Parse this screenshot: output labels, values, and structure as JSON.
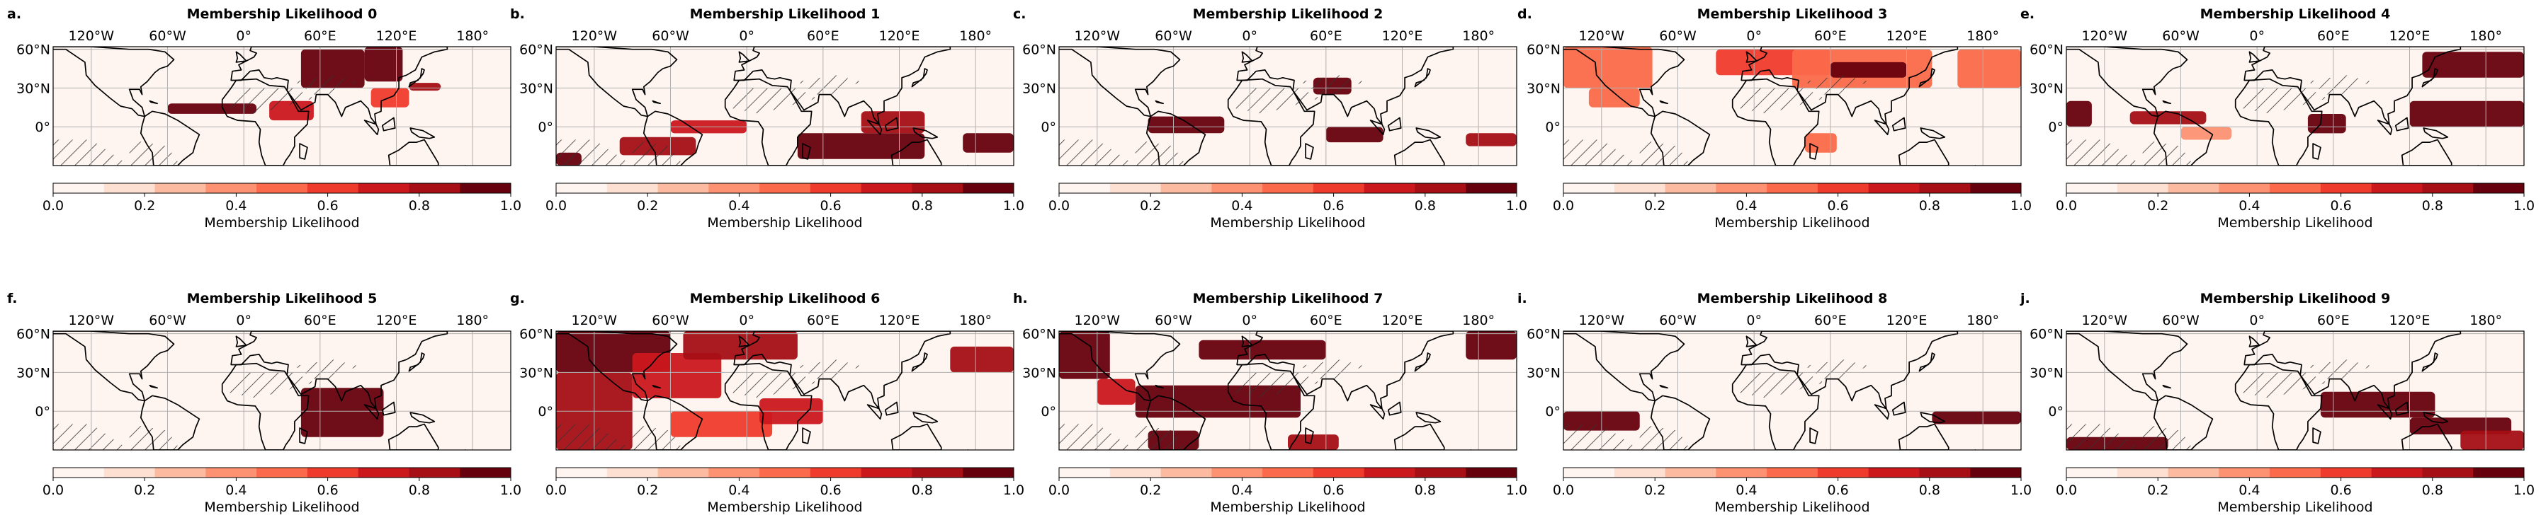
{
  "figure": {
    "colormap": [
      "#fff5f0",
      "#fee0d2",
      "#fcbba1",
      "#fc9272",
      "#fb6a4a",
      "#ef3b2c",
      "#cb181d",
      "#a50f15",
      "#67000d"
    ],
    "colors": {
      "map_bg": "#fff5f0",
      "coast": "#000000",
      "grid": "#b0b0b0",
      "hatch": "#333333"
    },
    "xtick_labels": [
      "120°W",
      "60°W",
      "0°",
      "60°E",
      "120°E",
      "180°"
    ],
    "xtick_values": [
      -120,
      -60,
      0,
      60,
      120,
      180
    ],
    "ytick_labels": [
      "60°N",
      "30°N",
      "0°"
    ],
    "ytick_values": [
      60,
      30,
      0
    ],
    "lon_range": [
      -150,
      210
    ],
    "lat_range": [
      -30,
      62
    ],
    "colorbar": {
      "label": "Membership Likelihood",
      "tick_labels": [
        "0.0",
        "0.2",
        "0.4",
        "0.6",
        "0.8",
        "1.0"
      ],
      "tick_values": [
        0,
        0.2,
        0.4,
        0.6,
        0.8,
        1.0
      ],
      "range": [
        0,
        1
      ]
    }
  },
  "chart_data": [
    {
      "type": "heatmap",
      "letter": "a.",
      "title": "Membership Likelihood 0",
      "xlabel": "",
      "ylabel": "",
      "xlim": [
        -150,
        210
      ],
      "ylim": [
        -30,
        62
      ],
      "regions": [
        {
          "lon": [
            45,
            95
          ],
          "lat": [
            30,
            60
          ],
          "value": 0.95
        },
        {
          "lon": [
            95,
            125
          ],
          "lat": [
            35,
            62
          ],
          "value": 0.95
        },
        {
          "lon": [
            -60,
            10
          ],
          "lat": [
            10,
            18
          ],
          "value": 0.9
        },
        {
          "lon": [
            20,
            55
          ],
          "lat": [
            5,
            20
          ],
          "value": 0.7
        },
        {
          "lon": [
            100,
            130
          ],
          "lat": [
            15,
            30
          ],
          "value": 0.6
        },
        {
          "lon": [
            130,
            155
          ],
          "lat": [
            28,
            34
          ],
          "value": 0.85
        }
      ]
    },
    {
      "type": "heatmap",
      "letter": "b.",
      "title": "Membership Likelihood 1",
      "xlabel": "",
      "ylabel": "",
      "xlim": [
        -150,
        210
      ],
      "ylim": [
        -30,
        62
      ],
      "regions": [
        {
          "lon": [
            -150,
            -130
          ],
          "lat": [
            -30,
            -20
          ],
          "value": 0.95
        },
        {
          "lon": [
            -100,
            -40
          ],
          "lat": [
            -22,
            -8
          ],
          "value": 0.8
        },
        {
          "lon": [
            -60,
            0
          ],
          "lat": [
            -5,
            5
          ],
          "value": 0.75
        },
        {
          "lon": [
            40,
            140
          ],
          "lat": [
            -25,
            -5
          ],
          "value": 0.95
        },
        {
          "lon": [
            90,
            140
          ],
          "lat": [
            -5,
            12
          ],
          "value": 0.85
        },
        {
          "lon": [
            170,
            210
          ],
          "lat": [
            -20,
            -5
          ],
          "value": 0.95
        }
      ]
    },
    {
      "type": "heatmap",
      "letter": "c.",
      "title": "Membership Likelihood 2",
      "xlabel": "",
      "ylabel": "",
      "xlim": [
        -150,
        210
      ],
      "ylim": [
        -30,
        62
      ],
      "regions": [
        {
          "lon": [
            -80,
            -20
          ],
          "lat": [
            -5,
            8
          ],
          "value": 0.95
        },
        {
          "lon": [
            50,
            80
          ],
          "lat": [
            25,
            38
          ],
          "value": 0.95
        },
        {
          "lon": [
            60,
            105
          ],
          "lat": [
            -12,
            0
          ],
          "value": 0.95
        },
        {
          "lon": [
            170,
            210
          ],
          "lat": [
            -15,
            -5
          ],
          "value": 0.8
        }
      ]
    },
    {
      "type": "heatmap",
      "letter": "d.",
      "title": "Membership Likelihood 3",
      "xlabel": "",
      "ylabel": "",
      "xlim": [
        -150,
        210
      ],
      "ylim": [
        -30,
        62
      ],
      "regions": [
        {
          "lon": [
            -150,
            -80
          ],
          "lat": [
            30,
            62
          ],
          "value": 0.55
        },
        {
          "lon": [
            -130,
            -90
          ],
          "lat": [
            15,
            30
          ],
          "value": 0.45
        },
        {
          "lon": [
            -30,
            60
          ],
          "lat": [
            40,
            60
          ],
          "value": 0.6
        },
        {
          "lon": [
            30,
            140
          ],
          "lat": [
            30,
            60
          ],
          "value": 0.55
        },
        {
          "lon": [
            60,
            120
          ],
          "lat": [
            38,
            50
          ],
          "value": 0.95
        },
        {
          "lon": [
            160,
            210
          ],
          "lat": [
            30,
            60
          ],
          "value": 0.5
        },
        {
          "lon": [
            40,
            65
          ],
          "lat": [
            -20,
            -5
          ],
          "value": 0.45
        }
      ]
    },
    {
      "type": "heatmap",
      "letter": "e.",
      "title": "Membership Likelihood 4",
      "xlabel": "",
      "ylabel": "",
      "xlim": [
        -150,
        210
      ],
      "ylim": [
        -30,
        62
      ],
      "regions": [
        {
          "lon": [
            -150,
            -130
          ],
          "lat": [
            0,
            20
          ],
          "value": 0.95
        },
        {
          "lon": [
            -100,
            -40
          ],
          "lat": [
            2,
            12
          ],
          "value": 0.85
        },
        {
          "lon": [
            -60,
            -20
          ],
          "lat": [
            -10,
            0
          ],
          "value": 0.4
        },
        {
          "lon": [
            40,
            70
          ],
          "lat": [
            -5,
            10
          ],
          "value": 0.9
        },
        {
          "lon": [
            120,
            210
          ],
          "lat": [
            0,
            20
          ],
          "value": 0.95
        },
        {
          "lon": [
            130,
            210
          ],
          "lat": [
            38,
            58
          ],
          "value": 0.95
        }
      ]
    },
    {
      "type": "heatmap",
      "letter": "f.",
      "title": "Membership Likelihood 5",
      "xlabel": "",
      "ylabel": "",
      "xlim": [
        -150,
        210
      ],
      "ylim": [
        -30,
        62
      ],
      "regions": [
        {
          "lon": [
            45,
            110
          ],
          "lat": [
            -20,
            18
          ],
          "value": 0.95
        }
      ]
    },
    {
      "type": "heatmap",
      "letter": "g.",
      "title": "Membership Likelihood 6",
      "xlabel": "",
      "ylabel": "",
      "xlim": [
        -150,
        210
      ],
      "ylim": [
        -30,
        62
      ],
      "regions": [
        {
          "lon": [
            -150,
            -60
          ],
          "lat": [
            30,
            62
          ],
          "value": 0.9
        },
        {
          "lon": [
            -150,
            -90
          ],
          "lat": [
            -30,
            30
          ],
          "value": 0.85
        },
        {
          "lon": [
            -90,
            -20
          ],
          "lat": [
            10,
            45
          ],
          "value": 0.75
        },
        {
          "lon": [
            -50,
            40
          ],
          "lat": [
            40,
            62
          ],
          "value": 0.85
        },
        {
          "lon": [
            -60,
            20
          ],
          "lat": [
            -20,
            0
          ],
          "value": 0.6
        },
        {
          "lon": [
            10,
            60
          ],
          "lat": [
            -10,
            10
          ],
          "value": 0.7
        },
        {
          "lon": [
            160,
            210
          ],
          "lat": [
            30,
            50
          ],
          "value": 0.8
        }
      ]
    },
    {
      "type": "heatmap",
      "letter": "h.",
      "title": "Membership Likelihood 7",
      "xlabel": "",
      "ylabel": "",
      "xlim": [
        -150,
        210
      ],
      "ylim": [
        -30,
        62
      ],
      "regions": [
        {
          "lon": [
            -150,
            -110
          ],
          "lat": [
            25,
            62
          ],
          "value": 0.9
        },
        {
          "lon": [
            -120,
            -90
          ],
          "lat": [
            5,
            25
          ],
          "value": 0.7
        },
        {
          "lon": [
            -90,
            40
          ],
          "lat": [
            -5,
            20
          ],
          "value": 0.95
        },
        {
          "lon": [
            -40,
            60
          ],
          "lat": [
            40,
            55
          ],
          "value": 0.9
        },
        {
          "lon": [
            -80,
            -40
          ],
          "lat": [
            -30,
            -15
          ],
          "value": 0.95
        },
        {
          "lon": [
            30,
            70
          ],
          "lat": [
            -30,
            -18
          ],
          "value": 0.8
        },
        {
          "lon": [
            170,
            210
          ],
          "lat": [
            40,
            62
          ],
          "value": 0.95
        }
      ]
    },
    {
      "type": "heatmap",
      "letter": "i.",
      "title": "Membership Likelihood 8",
      "xlabel": "",
      "ylabel": "",
      "xlim": [
        -150,
        210
      ],
      "ylim": [
        -30,
        62
      ],
      "regions": [
        {
          "lon": [
            -150,
            -90
          ],
          "lat": [
            -15,
            0
          ],
          "value": 0.95
        },
        {
          "lon": [
            140,
            210
          ],
          "lat": [
            -10,
            0
          ],
          "value": 0.9
        }
      ]
    },
    {
      "type": "heatmap",
      "letter": "j.",
      "title": "Membership Likelihood 9",
      "xlabel": "",
      "ylabel": "",
      "xlim": [
        -150,
        210
      ],
      "ylim": [
        -30,
        62
      ],
      "regions": [
        {
          "lon": [
            -150,
            -70
          ],
          "lat": [
            -30,
            -20
          ],
          "value": 0.95
        },
        {
          "lon": [
            50,
            140
          ],
          "lat": [
            -5,
            15
          ],
          "value": 0.9
        },
        {
          "lon": [
            120,
            200
          ],
          "lat": [
            -18,
            -5
          ],
          "value": 0.9
        },
        {
          "lon": [
            160,
            210
          ],
          "lat": [
            -30,
            -15
          ],
          "value": 0.8
        }
      ]
    }
  ]
}
